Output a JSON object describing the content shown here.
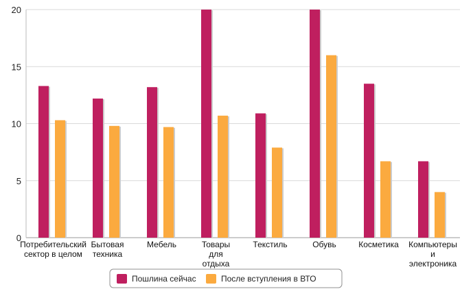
{
  "chart_data": {
    "type": "bar",
    "categories": [
      [
        "Потребительский",
        "сектор в целом"
      ],
      [
        "Бытовая",
        "техника"
      ],
      [
        "Мебель"
      ],
      [
        "Товары",
        "для",
        "отдыха"
      ],
      [
        "Текстиль"
      ],
      [
        "Обувь"
      ],
      [
        "Косметика"
      ],
      [
        "Компьютеры",
        "и",
        "электроника"
      ]
    ],
    "series": [
      {
        "name": "Пошлина сейчас",
        "color": "#bf1f5f",
        "values": [
          13.3,
          12.2,
          13.2,
          20.0,
          10.9,
          20.0,
          13.5,
          6.7
        ]
      },
      {
        "name": "После вступления в ВТО",
        "color": "#fbaa3f",
        "values": [
          10.3,
          9.8,
          9.7,
          10.7,
          7.9,
          16.0,
          6.7,
          4.0
        ]
      }
    ],
    "yticks": [
      0,
      5,
      10,
      15,
      20
    ],
    "ylim": [
      0,
      20
    ],
    "grid": true,
    "legend_position": "bottom-center",
    "title": "",
    "xlabel": "",
    "ylabel": ""
  }
}
